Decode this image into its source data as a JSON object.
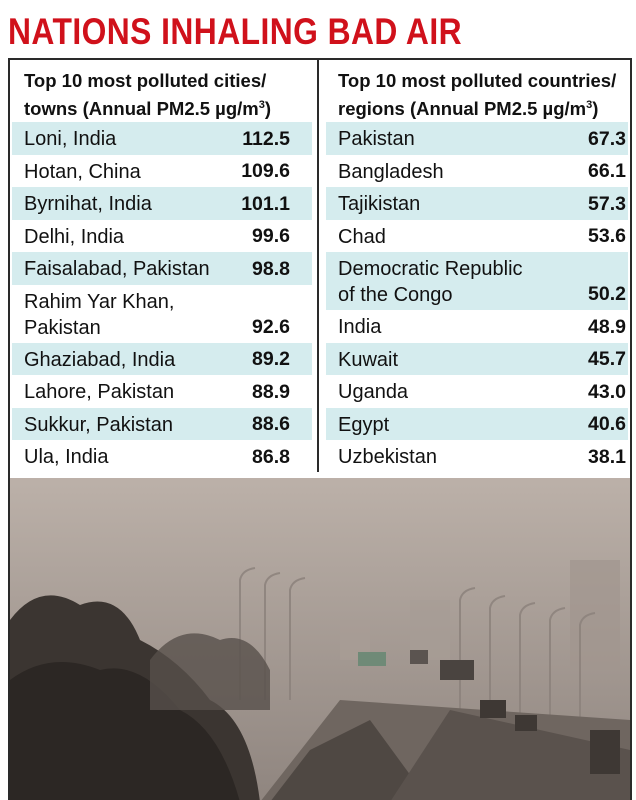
{
  "title": "NATIONS INHALING BAD AIR",
  "chart_data": [
    {
      "type": "table",
      "header_line1": "Top 10 most polluted cities/",
      "header_line2a": "towns (Annual PM2.5 µg/m",
      "header_sup": "3",
      "header_line2b": ")",
      "rows": [
        {
          "name": "Loni, India",
          "value": "112.5"
        },
        {
          "name": "Hotan, China",
          "value": "109.6"
        },
        {
          "name": "Byrnihat, India",
          "value": "101.1"
        },
        {
          "name": "Delhi, India",
          "value": "99.6"
        },
        {
          "name": "Faisalabad, Pakistan",
          "value": "98.8"
        },
        {
          "name": "Rahim Yar Khan,\nPakistan",
          "value": "92.6"
        },
        {
          "name": "Ghaziabad, India",
          "value": "89.2"
        },
        {
          "name": "Lahore, Pakistan",
          "value": "88.9"
        },
        {
          "name": "Sukkur, Pakistan",
          "value": "88.6"
        },
        {
          "name": "Ula, India",
          "value": "86.8"
        }
      ]
    },
    {
      "type": "table",
      "header_line1": "Top 10 most polluted countries/",
      "header_line2a": "regions (Annual PM2.5 µg/m",
      "header_sup": "3",
      "header_line2b": ")",
      "rows": [
        {
          "name": "Pakistan",
          "value": "67.3"
        },
        {
          "name": "Bangladesh",
          "value": "66.1"
        },
        {
          "name": "Tajikistan",
          "value": "57.3"
        },
        {
          "name": "Chad",
          "value": "53.6"
        },
        {
          "name": "Democratic Republic\nof the Congo",
          "value": "50.2"
        },
        {
          "name": "India",
          "value": "48.9"
        },
        {
          "name": "Kuwait",
          "value": "45.7"
        },
        {
          "name": "Uganda",
          "value": "43.0"
        },
        {
          "name": "Egypt",
          "value": "40.6"
        },
        {
          "name": "Uzbekistan",
          "value": "38.1"
        }
      ]
    }
  ],
  "colors": {
    "title": "#d0111b",
    "row_shade": "#d5ecee",
    "rule": "#2a2a2a"
  }
}
